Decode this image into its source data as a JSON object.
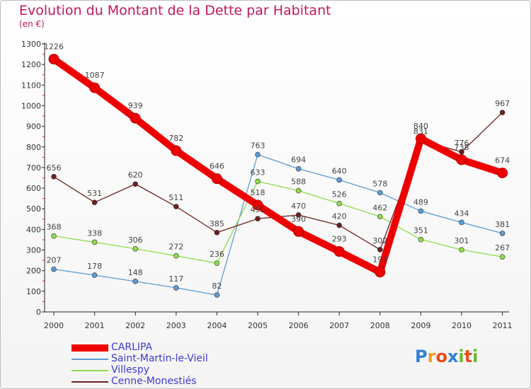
{
  "title": "Evolution du Montant de la Dette par Habitant",
  "subtitle": "(en €)",
  "logo": {
    "letters": [
      "P",
      "r",
      "o",
      "x",
      "i",
      "t",
      "i"
    ],
    "colors": [
      "#2f80d6",
      "#f29a1c",
      "#e84e1b",
      "#2f80d6",
      "#6bb82e",
      "#e84e1b",
      "#6bb82e"
    ]
  },
  "chart_data": {
    "type": "line",
    "title": "Evolution du Montant de la Dette par Habitant",
    "ylabel": "(en €)",
    "xlabel": "",
    "x": [
      "2000",
      "2001",
      "2002",
      "2003",
      "2004",
      "2005",
      "2006",
      "2007",
      "2008",
      "2009",
      "2010",
      "2011"
    ],
    "ylim": [
      0,
      1300
    ],
    "yticks": [
      0,
      100,
      200,
      300,
      400,
      500,
      600,
      700,
      800,
      900,
      1000,
      1100,
      1200,
      1300
    ],
    "grid": false,
    "legend": "bottom-left",
    "series": [
      {
        "name": "CARLIPA",
        "color": "#ee0000",
        "width": 10,
        "marker": 7,
        "values": [
          1226,
          1087,
          939,
          782,
          646,
          518,
          390,
          293,
          193,
          840,
          738,
          674
        ]
      },
      {
        "name": "Saint-Martin-le-Vieil",
        "color": "#5b9bd5",
        "width": 1.3,
        "marker": 3.5,
        "values": [
          207,
          178,
          148,
          117,
          82,
          763,
          694,
          640,
          578,
          489,
          434,
          381
        ]
      },
      {
        "name": "Villespy",
        "color": "#8ddc4a",
        "width": 1.3,
        "marker": 3.5,
        "values": [
          368,
          338,
          306,
          272,
          236,
          633,
          588,
          526,
          462,
          351,
          301,
          267
        ]
      },
      {
        "name": "Cenne-Monestiés",
        "color": "#6e2020",
        "width": 1.3,
        "marker": 3.5,
        "values": [
          656,
          531,
          620,
          511,
          385,
          452,
          470,
          420,
          302,
          831,
          776,
          967
        ]
      }
    ]
  }
}
